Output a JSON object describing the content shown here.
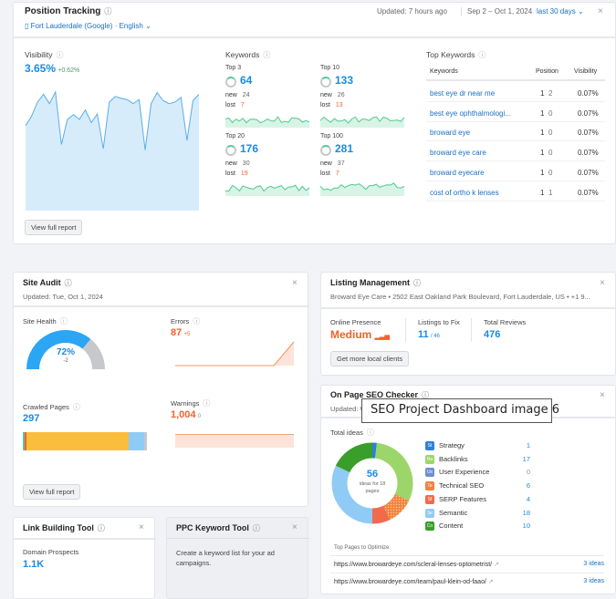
{
  "position_tracking": {
    "title": "Position Tracking",
    "updated": "Updated: 7 hours ago",
    "date_range": "Sep 2 – Oct 1, 2024",
    "period": "last 30 days",
    "location": "Fort Lauderdale (Google) · English",
    "visibility": {
      "label": "Visibility",
      "value": "3.65%",
      "delta": "+0.62%",
      "trend": [
        2.7,
        3.0,
        3.45,
        3.7,
        3.4,
        3.77,
        2.1,
        2.9,
        3.05,
        2.9,
        3.2,
        2.8,
        3.07,
        1.97,
        3.45,
        3.63,
        3.57,
        3.53,
        3.4,
        3.53,
        1.93,
        3.4,
        3.75,
        3.5,
        3.4,
        3.45,
        3.6,
        2.23,
        3.5,
        3.7
      ]
    },
    "keywords": {
      "label": "Keywords",
      "groups": [
        {
          "label": "Top 3",
          "value": "64",
          "new": "24",
          "lost": "7"
        },
        {
          "label": "Top 10",
          "value": "133",
          "new": "26",
          "lost": "13"
        },
        {
          "label": "Top 20",
          "value": "176",
          "new": "30",
          "lost": "19"
        },
        {
          "label": "Top 100",
          "value": "281",
          "new": "37",
          "lost": "7"
        }
      ],
      "new_label": "new",
      "lost_label": "lost"
    },
    "top_keywords": {
      "label": "Top Keywords",
      "columns": [
        "Keywords",
        "Position",
        "Visibility"
      ],
      "rows": [
        {
          "keyword": "best eye dr near me",
          "pos": "1",
          "change": "2",
          "vis": "0.07%"
        },
        {
          "keyword": "best eye ophthalmologi...",
          "pos": "1",
          "change": "0",
          "vis": "0.07%"
        },
        {
          "keyword": "broward eye",
          "pos": "1",
          "change": "0",
          "vis": "0.07%"
        },
        {
          "keyword": "broward eye care",
          "pos": "1",
          "change": "0",
          "vis": "0.07%"
        },
        {
          "keyword": "broward eyecare",
          "pos": "1",
          "change": "0",
          "vis": "0.07%"
        },
        {
          "keyword": "cost of ortho k lenses",
          "pos": "1",
          "change": "1",
          "vis": "0.07%"
        }
      ]
    },
    "view_report": "View full report"
  },
  "site_audit": {
    "title": "Site Audit",
    "updated": "Updated: Tue, Oct 1, 2024",
    "site_health": {
      "label": "Site Health",
      "value": "72%",
      "delta": "-2",
      "percent": 72
    },
    "errors": {
      "label": "Errors",
      "value": "87",
      "delta": "+5"
    },
    "crawled": {
      "label": "Crawled Pages",
      "value": "297"
    },
    "warnings": {
      "label": "Warnings",
      "value": "1,004",
      "delta": "0"
    },
    "view_report": "View full report"
  },
  "listing": {
    "title": "Listing Management",
    "address": "Broward Eye Care • 2502 East Oakland Park Boulevard, Fort Lauderdale, US • +1 9...",
    "presence_label": "Online Presence",
    "presence": "Medium",
    "fix_label": "Listings to Fix",
    "fix": "11",
    "fix_total": "/ 46",
    "reviews_label": "Total Reviews",
    "reviews": "476",
    "cta": "Get more local clients"
  },
  "onpage": {
    "title": "On Page SEO Checker",
    "updated": "Updated: W",
    "total_label": "Total ideas",
    "total": "56",
    "total_sub": "ideas for 18 pages",
    "categories": [
      {
        "abbr": "St",
        "name": "Strategy",
        "value": 1,
        "color": "#2f7fd8"
      },
      {
        "abbr": "Ba",
        "name": "Backlinks",
        "value": 17,
        "color": "#9cd66a"
      },
      {
        "abbr": "Ux",
        "name": "User Experience",
        "value": 0,
        "color": "#6d8fd3"
      },
      {
        "abbr": "Te",
        "name": "Technical SEO",
        "value": 6,
        "color": "#f5823b"
      },
      {
        "abbr": "Sf",
        "name": "SERP Features",
        "value": 4,
        "color": "#f26a4b"
      },
      {
        "abbr": "Se",
        "name": "Semantic",
        "value": 18,
        "color": "#8fcbf5"
      },
      {
        "abbr": "Co",
        "name": "Content",
        "value": 10,
        "color": "#3a9e2a"
      }
    ],
    "pages_label": "Top Pages to Optimize",
    "pages": [
      {
        "url": "https://www.browardeye.com/scleral-lenses-optometrist/",
        "ideas": "3 ideas"
      },
      {
        "url": "https://www.browardeye.com/team/paul-klein-od-faao/",
        "ideas": "3 ideas"
      }
    ]
  },
  "link_building": {
    "title": "Link Building Tool",
    "label": "Domain Prospects",
    "value": "1.1K"
  },
  "ppc": {
    "title": "PPC Keyword Tool",
    "text": "Create a keyword list for your ad campaigns."
  },
  "tooltip": "SEO Project Dashboard image 6"
}
